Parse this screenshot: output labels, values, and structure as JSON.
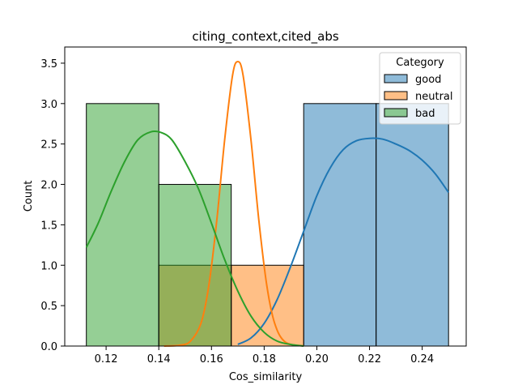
{
  "chart_data": {
    "type": "histogram",
    "title": "citing_context,cited_abs",
    "xlabel": "Cos_similarity",
    "ylabel": "Count",
    "xlim": [
      0.1043,
      0.2567
    ],
    "ylim": [
      0,
      3.7
    ],
    "xticks": [
      0.12,
      0.14,
      0.16,
      0.18,
      0.2,
      0.22,
      0.24
    ],
    "xtick_labels": [
      "0.12",
      "0.14",
      "0.16",
      "0.18",
      "0.20",
      "0.22",
      "0.24"
    ],
    "yticks": [
      0.0,
      0.5,
      1.0,
      1.5,
      2.0,
      2.5,
      3.0,
      3.5
    ],
    "ytick_labels": [
      "0.0",
      "0.5",
      "1.0",
      "1.5",
      "2.0",
      "2.5",
      "3.0",
      "3.5"
    ],
    "legend": {
      "title": "Category",
      "position": "top-right"
    },
    "series": [
      {
        "name": "good",
        "color": "#1f77b4",
        "fill": "#8fbbdb",
        "bins": [
          {
            "x0": 0.195,
            "x1": 0.2225,
            "count": 3
          },
          {
            "x0": 0.2225,
            "x1": 0.25,
            "count": 3
          }
        ],
        "kde": {
          "x": [
            0.17,
            0.175,
            0.18,
            0.185,
            0.19,
            0.195,
            0.2,
            0.205,
            0.21,
            0.215,
            0.22,
            0.225,
            0.23,
            0.235,
            0.24,
            0.245,
            0.25
          ],
          "y": [
            0.02,
            0.1,
            0.28,
            0.58,
            0.98,
            1.42,
            1.86,
            2.2,
            2.43,
            2.54,
            2.57,
            2.56,
            2.5,
            2.42,
            2.3,
            2.13,
            1.9
          ]
        }
      },
      {
        "name": "neutral",
        "color": "#ff7f0e",
        "fill": "#ffbb88",
        "bins": [
          {
            "x0": 0.14,
            "x1": 0.1675,
            "count": 1
          },
          {
            "x0": 0.1675,
            "x1": 0.195,
            "count": 1
          }
        ],
        "kde": {
          "x": [
            0.142,
            0.148,
            0.152,
            0.156,
            0.159,
            0.162,
            0.165,
            0.168,
            0.17,
            0.172,
            0.175,
            0.178,
            0.181,
            0.184,
            0.188,
            0.195
          ],
          "y": [
            0.0,
            0.01,
            0.06,
            0.28,
            0.75,
            1.55,
            2.55,
            3.35,
            3.52,
            3.35,
            2.55,
            1.55,
            0.75,
            0.28,
            0.05,
            0.0
          ]
        }
      },
      {
        "name": "bad",
        "color": "#2ca02c",
        "fill": "#97d496",
        "bins": [
          {
            "x0": 0.1125,
            "x1": 0.14,
            "count": 3
          },
          {
            "x0": 0.14,
            "x1": 0.1675,
            "count": 2
          }
        ],
        "kde": {
          "x": [
            0.1125,
            0.117,
            0.122,
            0.127,
            0.132,
            0.137,
            0.141,
            0.145,
            0.15,
            0.155,
            0.16,
            0.165,
            0.17,
            0.175,
            0.18,
            0.185,
            0.19,
            0.195
          ],
          "y": [
            1.22,
            1.52,
            1.92,
            2.28,
            2.55,
            2.65,
            2.64,
            2.55,
            2.28,
            1.95,
            1.52,
            1.07,
            0.68,
            0.37,
            0.17,
            0.06,
            0.02,
            0.0
          ]
        }
      }
    ]
  }
}
